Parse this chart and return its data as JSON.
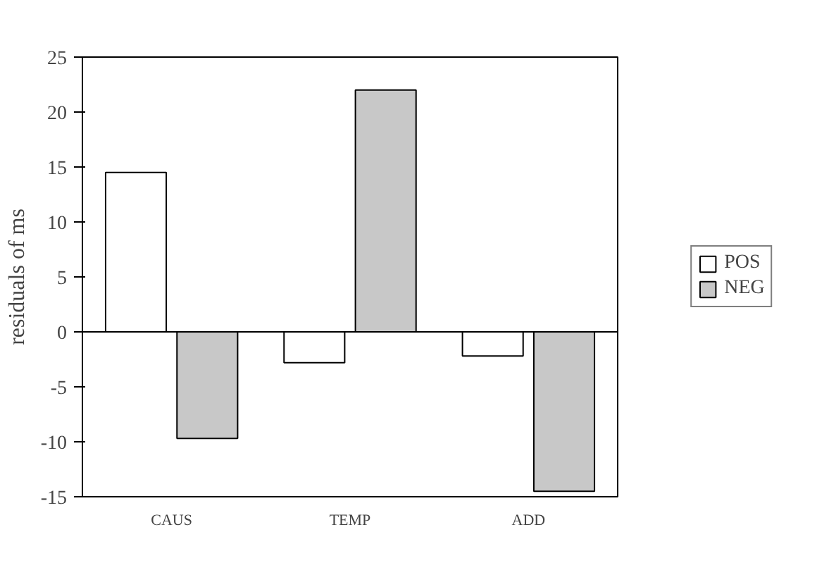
{
  "chart_data": {
    "type": "bar",
    "ylabel": "residuals of ms",
    "categories": [
      "CAUS",
      "TEMP",
      "ADD"
    ],
    "series": [
      {
        "name": "POS",
        "color": "#ffffff",
        "values": [
          14.5,
          -2.8,
          -2.2
        ]
      },
      {
        "name": "NEG",
        "color": "#c8c8c8",
        "values": [
          -9.7,
          22,
          -14.5
        ]
      }
    ],
    "ylim": [
      -15,
      25
    ],
    "yticks": [
      -15,
      -10,
      -5,
      0,
      5,
      10,
      15,
      20,
      25
    ],
    "legend": "right"
  }
}
